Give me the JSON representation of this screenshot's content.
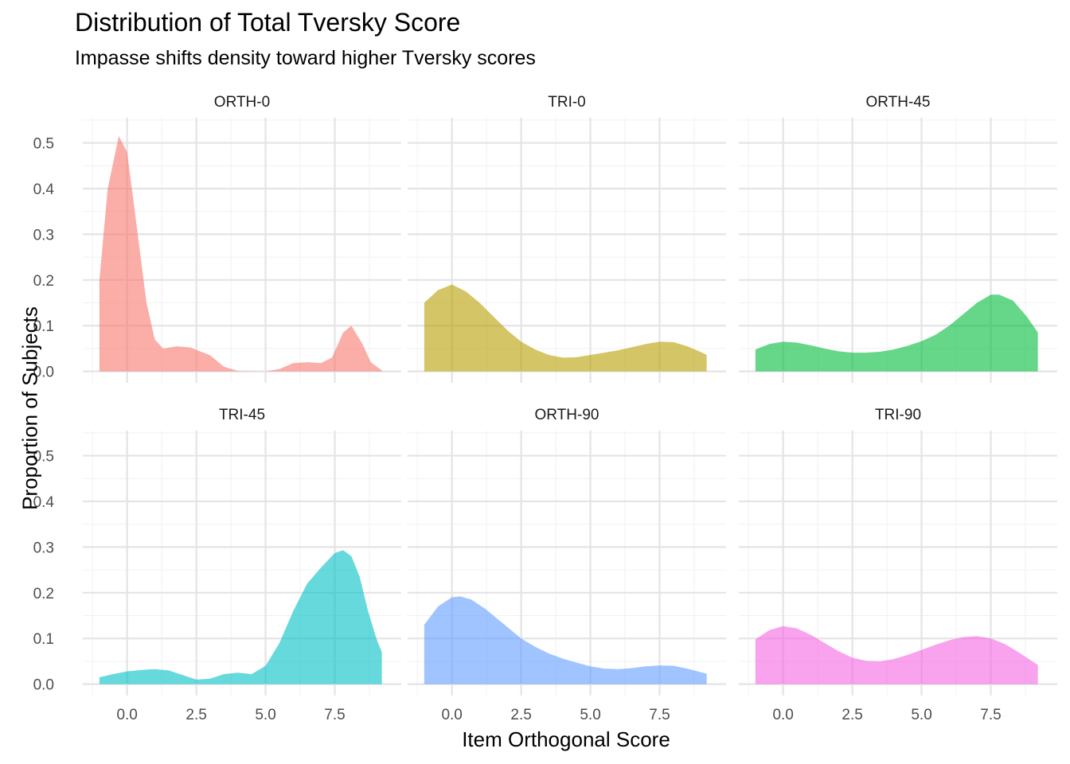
{
  "chart_data": {
    "type": "area",
    "title": "Distribution of Total Tversky Score",
    "subtitle": "Impasse shifts density toward higher Tversky scores",
    "xlabel": "Item Orthogonal Score",
    "ylabel": "Proportion of Subjects",
    "xlim": [
      -1.6,
      9.9
    ],
    "ylim": [
      -0.025,
      0.555
    ],
    "x_ticks": [
      0.0,
      2.5,
      5.0,
      7.5
    ],
    "x_tick_labels": [
      "0.0",
      "2.5",
      "5.0",
      "7.5"
    ],
    "y_ticks": [
      0.0,
      0.1,
      0.2,
      0.3,
      0.4,
      0.5
    ],
    "y_tick_labels": [
      "0.0",
      "0.1",
      "0.2",
      "0.3",
      "0.4",
      "0.5"
    ],
    "grid": true,
    "legend": "none",
    "panels": [
      {
        "name": "ORTH-0",
        "color": "#F8766D",
        "points": [
          [
            -1,
            0.2
          ],
          [
            -0.7,
            0.4
          ],
          [
            -0.3,
            0.515
          ],
          [
            0,
            0.48
          ],
          [
            0.3,
            0.34
          ],
          [
            0.7,
            0.15
          ],
          [
            1,
            0.07
          ],
          [
            1.3,
            0.05
          ],
          [
            1.8,
            0.055
          ],
          [
            2.3,
            0.052
          ],
          [
            3,
            0.035
          ],
          [
            3.5,
            0.01
          ],
          [
            4,
            0.001
          ],
          [
            5,
            0
          ],
          [
            5.5,
            0.005
          ],
          [
            6,
            0.018
          ],
          [
            6.5,
            0.02
          ],
          [
            7,
            0.018
          ],
          [
            7.4,
            0.03
          ],
          [
            7.8,
            0.085
          ],
          [
            8.1,
            0.1
          ],
          [
            8.5,
            0.06
          ],
          [
            8.8,
            0.02
          ],
          [
            9.2,
            0.002
          ]
        ]
      },
      {
        "name": "TRI-0",
        "color": "#B79F00",
        "points": [
          [
            -1,
            0.15
          ],
          [
            -0.5,
            0.178
          ],
          [
            0,
            0.19
          ],
          [
            0.5,
            0.175
          ],
          [
            1,
            0.15
          ],
          [
            1.5,
            0.12
          ],
          [
            2,
            0.09
          ],
          [
            2.5,
            0.065
          ],
          [
            3,
            0.048
          ],
          [
            3.5,
            0.036
          ],
          [
            4,
            0.03
          ],
          [
            4.5,
            0.031
          ],
          [
            5,
            0.036
          ],
          [
            6,
            0.046
          ],
          [
            7,
            0.06
          ],
          [
            7.5,
            0.065
          ],
          [
            8,
            0.064
          ],
          [
            8.5,
            0.055
          ],
          [
            9,
            0.042
          ],
          [
            9.2,
            0.036
          ]
        ]
      },
      {
        "name": "ORTH-45",
        "color": "#00BA38",
        "points": [
          [
            -1,
            0.048
          ],
          [
            -0.5,
            0.06
          ],
          [
            0,
            0.065
          ],
          [
            0.5,
            0.063
          ],
          [
            1,
            0.057
          ],
          [
            1.5,
            0.05
          ],
          [
            2,
            0.044
          ],
          [
            2.5,
            0.041
          ],
          [
            3,
            0.041
          ],
          [
            3.5,
            0.043
          ],
          [
            4,
            0.048
          ],
          [
            4.5,
            0.056
          ],
          [
            5,
            0.066
          ],
          [
            5.5,
            0.08
          ],
          [
            6,
            0.1
          ],
          [
            6.5,
            0.125
          ],
          [
            7,
            0.15
          ],
          [
            7.5,
            0.168
          ],
          [
            7.8,
            0.168
          ],
          [
            8.3,
            0.155
          ],
          [
            8.8,
            0.12
          ],
          [
            9.2,
            0.085
          ]
        ]
      },
      {
        "name": "TRI-45",
        "color": "#00BFC4",
        "points": [
          [
            -1,
            0.015
          ],
          [
            -0.5,
            0.022
          ],
          [
            0,
            0.028
          ],
          [
            0.5,
            0.031
          ],
          [
            1,
            0.033
          ],
          [
            1.5,
            0.03
          ],
          [
            2,
            0.02
          ],
          [
            2.5,
            0.01
          ],
          [
            3,
            0.012
          ],
          [
            3.5,
            0.022
          ],
          [
            4,
            0.025
          ],
          [
            4.5,
            0.022
          ],
          [
            5,
            0.04
          ],
          [
            5.5,
            0.09
          ],
          [
            6,
            0.16
          ],
          [
            6.5,
            0.22
          ],
          [
            7,
            0.255
          ],
          [
            7.5,
            0.287
          ],
          [
            7.8,
            0.293
          ],
          [
            8.1,
            0.28
          ],
          [
            8.4,
            0.235
          ],
          [
            8.7,
            0.16
          ],
          [
            9,
            0.1
          ],
          [
            9.2,
            0.07
          ]
        ]
      },
      {
        "name": "ORTH-90",
        "color": "#619CFF",
        "points": [
          [
            -1,
            0.13
          ],
          [
            -0.5,
            0.17
          ],
          [
            0,
            0.19
          ],
          [
            0.3,
            0.192
          ],
          [
            0.7,
            0.185
          ],
          [
            1.2,
            0.165
          ],
          [
            2,
            0.125
          ],
          [
            2.5,
            0.1
          ],
          [
            3,
            0.082
          ],
          [
            3.5,
            0.067
          ],
          [
            4,
            0.056
          ],
          [
            4.5,
            0.047
          ],
          [
            5,
            0.039
          ],
          [
            5.5,
            0.034
          ],
          [
            6,
            0.033
          ],
          [
            6.5,
            0.035
          ],
          [
            7,
            0.039
          ],
          [
            7.5,
            0.041
          ],
          [
            8,
            0.04
          ],
          [
            8.5,
            0.034
          ],
          [
            9,
            0.026
          ],
          [
            9.2,
            0.023
          ]
        ]
      },
      {
        "name": "TRI-90",
        "color": "#F564E3",
        "points": [
          [
            -1,
            0.098
          ],
          [
            -0.5,
            0.118
          ],
          [
            0,
            0.127
          ],
          [
            0.5,
            0.122
          ],
          [
            1,
            0.108
          ],
          [
            1.5,
            0.09
          ],
          [
            2,
            0.072
          ],
          [
            2.5,
            0.058
          ],
          [
            3,
            0.051
          ],
          [
            3.5,
            0.05
          ],
          [
            4,
            0.055
          ],
          [
            4.5,
            0.064
          ],
          [
            5,
            0.075
          ],
          [
            5.5,
            0.086
          ],
          [
            6,
            0.096
          ],
          [
            6.5,
            0.103
          ],
          [
            7,
            0.105
          ],
          [
            7.5,
            0.1
          ],
          [
            8,
            0.088
          ],
          [
            8.5,
            0.07
          ],
          [
            9,
            0.05
          ],
          [
            9.2,
            0.042
          ]
        ]
      }
    ]
  }
}
